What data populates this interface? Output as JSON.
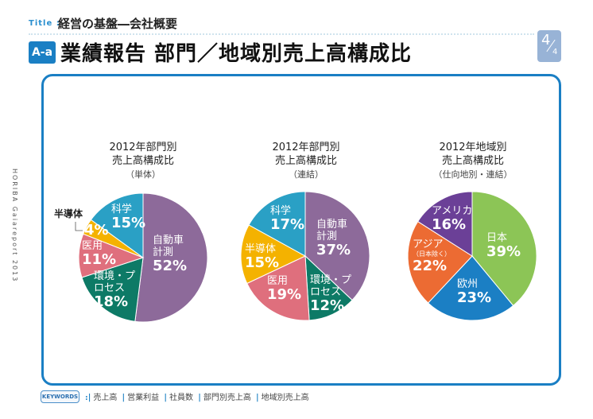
{
  "header": {
    "title_label": "Title :",
    "title": "経営の基盤―会社概要",
    "badge": "A-a",
    "heading": "業績報告 部門／地域別売上高構成比",
    "page_num": "4",
    "page_total": "4"
  },
  "side_text": "HORIBA Gaiareport 2013",
  "keywords": {
    "label": "KEYWORDS",
    "items": [
      "売上高",
      "営業利益",
      "社員数",
      "部門別売上高",
      "地域別売上高"
    ]
  },
  "chart_data": [
    {
      "type": "pie",
      "title_lines": [
        "2012年部門別",
        "売上高構成比"
      ],
      "subtitle": "（単体）",
      "slices": [
        {
          "label": "自動車計測",
          "value": 52,
          "color": "#8d6a9a"
        },
        {
          "label": "環境・プロセス",
          "value": 18,
          "color": "#0d7a66"
        },
        {
          "label": "医用",
          "value": 11,
          "color": "#df6f7d"
        },
        {
          "label": "半導体",
          "value": 4,
          "color": "#f4b200"
        },
        {
          "label": "科学",
          "value": 15,
          "color": "#2aa0c5"
        }
      ]
    },
    {
      "type": "pie",
      "title_lines": [
        "2012年部門別",
        "売上高構成比"
      ],
      "subtitle": "（連結）",
      "slices": [
        {
          "label": "自動車計測",
          "value": 37,
          "color": "#8d6a9a"
        },
        {
          "label": "環境・プロセス",
          "value": 12,
          "color": "#0d7a66"
        },
        {
          "label": "医用",
          "value": 19,
          "color": "#df6f7d"
        },
        {
          "label": "半導体",
          "value": 15,
          "color": "#f4b200"
        },
        {
          "label": "科学",
          "value": 17,
          "color": "#2aa0c5"
        }
      ]
    },
    {
      "type": "pie",
      "title_lines": [
        "2012年地域別",
        "売上高構成比"
      ],
      "subtitle": "（仕向地別・連結）",
      "slices": [
        {
          "label": "日本",
          "value": 39,
          "color": "#8cc556"
        },
        {
          "label": "欧州",
          "value": 23,
          "color": "#1b7fc4"
        },
        {
          "label": "アジア",
          "note": "（日本除く）",
          "value": 22,
          "color": "#ec6b33"
        },
        {
          "label": "アメリカ",
          "value": 16,
          "color": "#6b4097"
        }
      ]
    }
  ]
}
